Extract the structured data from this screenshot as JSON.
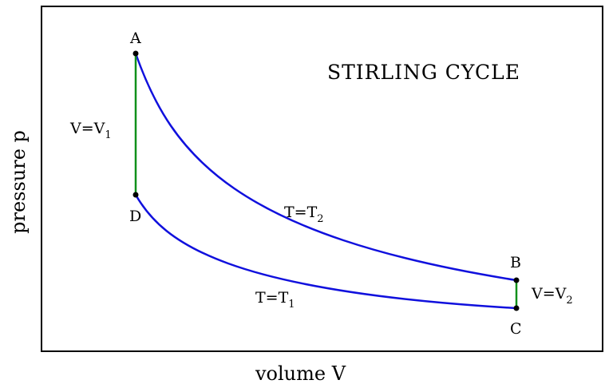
{
  "title": "STIRLING CYCLE",
  "axes": {
    "xlabel": "volume V",
    "ylabel": "pressure p"
  },
  "points": {
    "A": "A",
    "B": "B",
    "C": "C",
    "D": "D"
  },
  "labels": {
    "v1": {
      "main": "V=V",
      "sub": "1"
    },
    "v2": {
      "main": "V=V",
      "sub": "2"
    },
    "t2": {
      "main": "T=T",
      "sub": "2"
    },
    "t1": {
      "main": "T=T",
      "sub": "1"
    }
  },
  "colors": {
    "isotherm": "#1010dd",
    "isochore": "#10901a",
    "frame": "#000000"
  }
}
